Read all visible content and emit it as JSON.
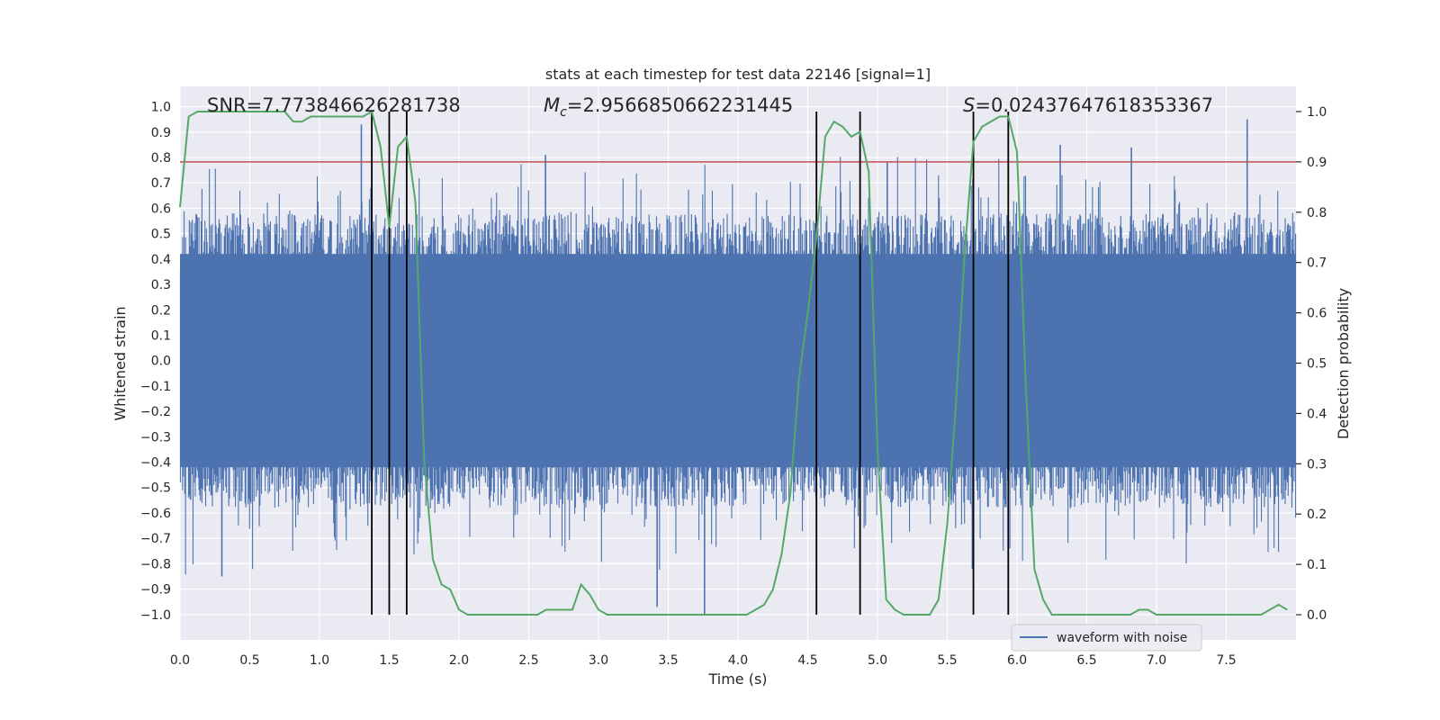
{
  "chart_data": {
    "type": "line",
    "title": "stats at each timestep for test data 22146 [signal=1]",
    "xlabel": "Time (s)",
    "ylabel": "Whitened strain",
    "y2label": "Detection probability",
    "xlim": [
      0.0,
      8.0
    ],
    "ylim": [
      -1.1,
      1.08
    ],
    "y2lim": [
      -0.05,
      1.05
    ],
    "xticks": [
      0.0,
      0.5,
      1.0,
      1.5,
      2.0,
      2.5,
      3.0,
      3.5,
      4.0,
      4.5,
      5.0,
      5.5,
      6.0,
      6.5,
      7.0,
      7.5
    ],
    "xtick_labels": [
      "0.0",
      "0.5",
      "1.0",
      "1.5",
      "2.0",
      "2.5",
      "3.0",
      "3.5",
      "4.0",
      "4.5",
      "5.0",
      "5.5",
      "6.0",
      "6.5",
      "7.0",
      "7.5"
    ],
    "yticks": [
      1.0,
      0.9,
      0.8,
      0.7,
      0.6,
      0.5,
      0.4,
      0.3,
      0.2,
      0.1,
      0.0,
      -0.1,
      -0.2,
      -0.3,
      -0.4,
      -0.5,
      -0.6,
      -0.7,
      -0.8,
      -0.9,
      -1.0
    ],
    "ytick_labels": [
      "1.0",
      "0.9",
      "0.8",
      "0.7",
      "0.6",
      "0.5",
      "0.4",
      "0.3",
      "0.2",
      "0.1",
      "0.0",
      "−0.1",
      "−0.2",
      "−0.3",
      "−0.4",
      "−0.5",
      "−0.6",
      "−0.7",
      "−0.8",
      "−0.9",
      "−1.0"
    ],
    "y2ticks": [
      0.0,
      0.1,
      0.2,
      0.3,
      0.4,
      0.5,
      0.6,
      0.7,
      0.8,
      0.9,
      1.0
    ],
    "y2tick_labels": [
      "0.0",
      "0.1",
      "0.2",
      "0.3",
      "0.4",
      "0.5",
      "0.6",
      "0.7",
      "0.8",
      "0.9",
      "1.0"
    ],
    "threshold": 0.9,
    "vlines": [
      1.375,
      1.5,
      1.625,
      4.5625,
      4.875,
      5.6875,
      5.9375
    ],
    "vline_range": [
      0.0,
      1.0
    ],
    "annotations": {
      "snr_prefix": "SNR=",
      "snr": "7.773846626281738",
      "mc_symbol": "M",
      "mc_sub": "c",
      "mc_eq": "=",
      "mc": "2.9566850662231445",
      "s_symbol": "S",
      "s_eq": "=",
      "s": "0.02437647618353367"
    },
    "legend": {
      "label": "waveform with noise",
      "position": "lower-right"
    },
    "series": [
      {
        "name": "waveform with noise",
        "axis": "left",
        "color": "#4c72b0",
        "kind": "dense-noise",
        "sample_rate": 2048,
        "core_amplitude": [
          -0.42,
          0.42
        ],
        "typical_peak": 0.58,
        "max_abs": 1.0,
        "notable_spikes": [
          [
            0.3,
            -0.85
          ],
          [
            1.3,
            0.93
          ],
          [
            2.62,
            0.81
          ],
          [
            3.42,
            -0.97
          ],
          [
            3.76,
            -1.0
          ],
          [
            5.07,
            0.78
          ],
          [
            5.68,
            -0.82
          ],
          [
            6.31,
            0.85
          ],
          [
            6.82,
            0.84
          ],
          [
            7.65,
            0.95
          ]
        ]
      },
      {
        "name": "Detection probability",
        "axis": "right",
        "color": "#55a868",
        "x": [
          0.0,
          0.0625,
          0.125,
          0.1875,
          0.25,
          0.3125,
          0.375,
          0.4375,
          0.5,
          0.5625,
          0.625,
          0.6875,
          0.75,
          0.8125,
          0.875,
          0.9375,
          1.0,
          1.0625,
          1.125,
          1.1875,
          1.25,
          1.3125,
          1.375,
          1.4375,
          1.5,
          1.5625,
          1.625,
          1.6875,
          1.75,
          1.8125,
          1.875,
          1.9375,
          2.0,
          2.0625,
          2.125,
          2.1875,
          2.25,
          2.3125,
          2.375,
          2.4375,
          2.5,
          2.5625,
          2.625,
          2.6875,
          2.75,
          2.8125,
          2.875,
          2.9375,
          3.0,
          3.0625,
          3.125,
          3.1875,
          3.25,
          3.3125,
          3.375,
          3.4375,
          3.5,
          3.5625,
          3.625,
          3.6875,
          3.75,
          3.8125,
          3.875,
          3.9375,
          4.0,
          4.0625,
          4.125,
          4.1875,
          4.25,
          4.3125,
          4.375,
          4.4375,
          4.5,
          4.5625,
          4.625,
          4.6875,
          4.75,
          4.8125,
          4.875,
          4.9375,
          5.0,
          5.0625,
          5.125,
          5.1875,
          5.25,
          5.3125,
          5.375,
          5.4375,
          5.5,
          5.5625,
          5.625,
          5.6875,
          5.75,
          5.8125,
          5.875,
          5.9375,
          6.0,
          6.0625,
          6.125,
          6.1875,
          6.25,
          6.3125,
          6.375,
          6.4375,
          6.5,
          6.5625,
          6.625,
          6.6875,
          6.75,
          6.8125,
          6.875,
          6.9375,
          7.0,
          7.0625,
          7.125,
          7.1875,
          7.25,
          7.3125,
          7.375,
          7.4375,
          7.5,
          7.5625,
          7.625,
          7.6875,
          7.75,
          7.8125,
          7.875,
          7.9375
        ],
        "values": [
          0.81,
          0.99,
          1.0,
          1.0,
          1.0,
          1.0,
          1.0,
          1.0,
          1.0,
          1.0,
          1.0,
          1.0,
          1.0,
          0.98,
          0.98,
          0.99,
          0.99,
          0.99,
          0.99,
          0.99,
          0.99,
          0.99,
          1.0,
          0.93,
          0.77,
          0.93,
          0.95,
          0.82,
          0.31,
          0.11,
          0.06,
          0.05,
          0.01,
          0.0,
          0.0,
          0.0,
          0.0,
          0.0,
          0.0,
          0.0,
          0.0,
          0.0,
          0.01,
          0.01,
          0.01,
          0.01,
          0.06,
          0.04,
          0.01,
          0.0,
          0.0,
          0.0,
          0.0,
          0.0,
          0.0,
          0.0,
          0.0,
          0.0,
          0.0,
          0.0,
          0.0,
          0.0,
          0.0,
          0.0,
          0.0,
          0.0,
          0.01,
          0.02,
          0.05,
          0.12,
          0.24,
          0.47,
          0.6,
          0.75,
          0.95,
          0.98,
          0.97,
          0.95,
          0.96,
          0.88,
          0.33,
          0.03,
          0.01,
          0.0,
          0.0,
          0.0,
          0.0,
          0.03,
          0.18,
          0.42,
          0.72,
          0.94,
          0.97,
          0.98,
          0.99,
          0.99,
          0.92,
          0.46,
          0.09,
          0.03,
          0.0,
          0.0,
          0.0,
          0.0,
          0.0,
          0.0,
          0.0,
          0.0,
          0.0,
          0.0,
          0.01,
          0.01,
          0.0,
          0.0,
          0.0,
          0.0,
          0.0,
          0.0,
          0.0,
          0.0,
          0.0,
          0.0,
          0.0,
          0.0,
          0.0,
          0.01,
          0.02,
          0.01
        ]
      }
    ]
  }
}
